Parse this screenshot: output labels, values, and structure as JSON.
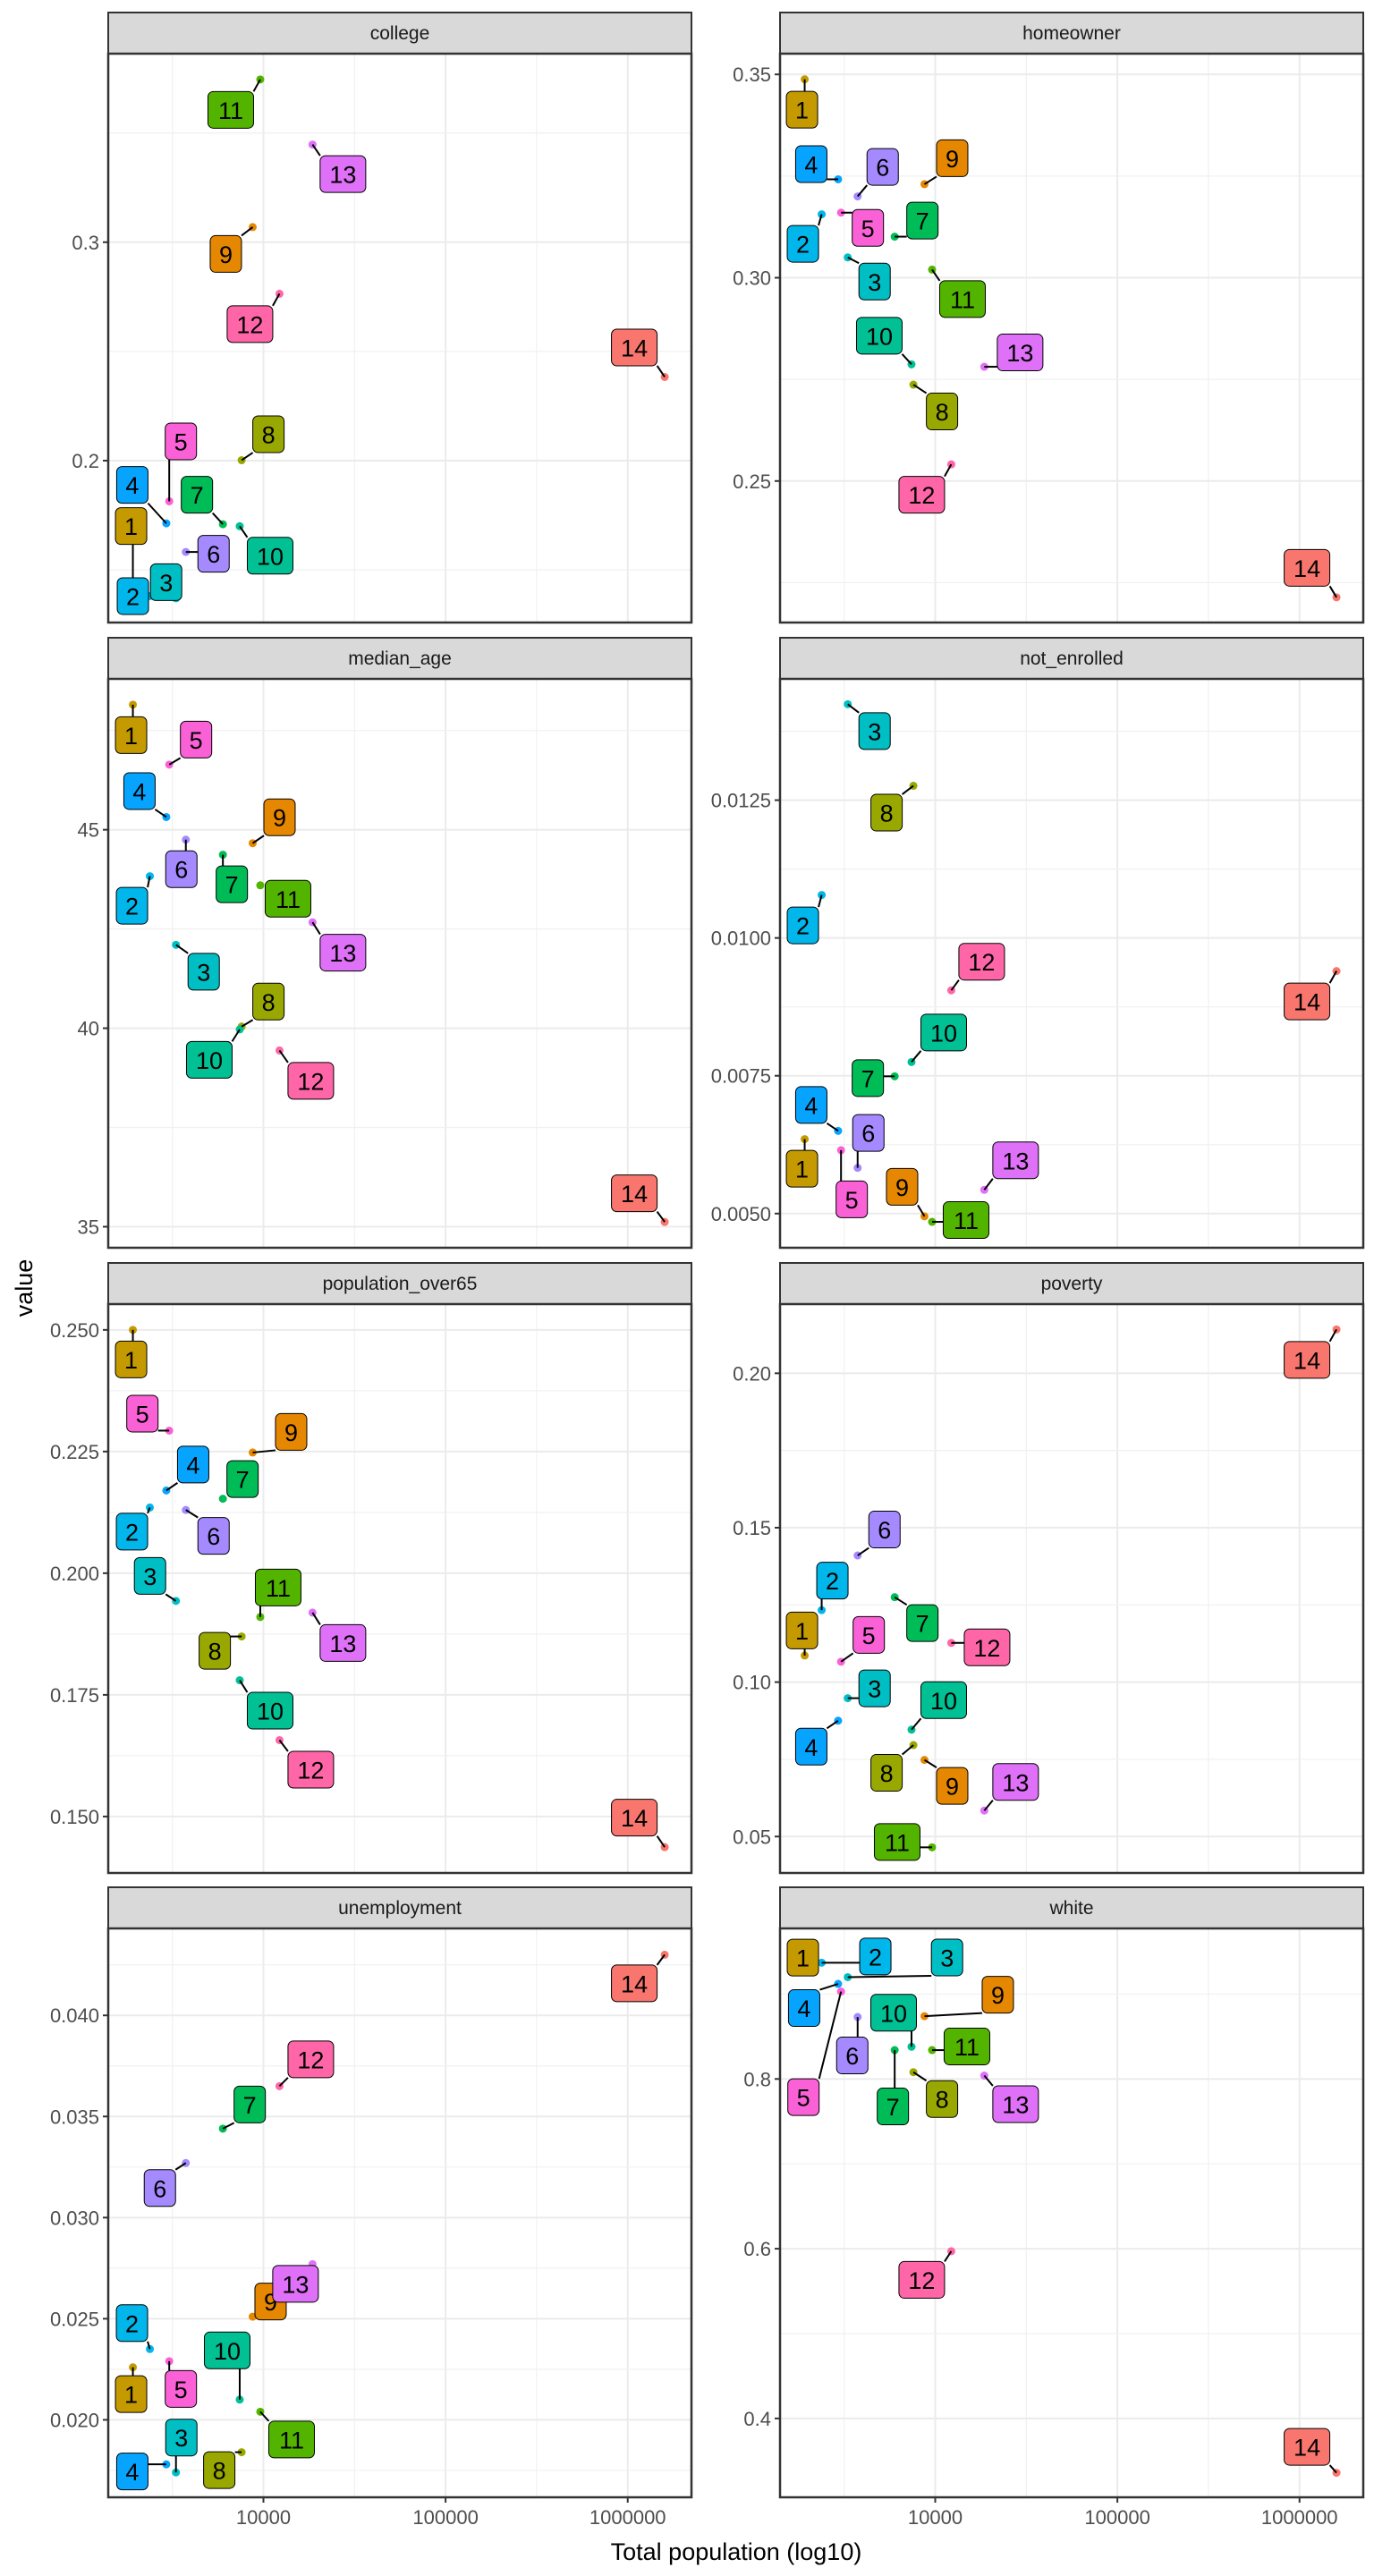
{
  "chart_data": {
    "type": "scatter",
    "faceted": true,
    "facet_layout": "2 columns x 4 rows, free y scales",
    "xlabel": "Total population (log10)",
    "ylabel": "value",
    "x_scale": "log10",
    "x_range": [
      1400,
      2240000
    ],
    "x_ticks": [
      10000,
      100000,
      1000000
    ],
    "x_tick_labels": [
      "10000",
      "100000",
      "1000000"
    ],
    "grid": true,
    "legend": "none",
    "point_ids": [
      "1",
      "2",
      "3",
      "4",
      "5",
      "6",
      "7",
      "8",
      "9",
      "10",
      "11",
      "12",
      "13",
      "14"
    ],
    "colors": {
      "1": "#C49A00",
      "2": "#00B6EB",
      "3": "#00BFC4",
      "4": "#06A4FF",
      "5": "#FB61D7",
      "6": "#A58AFF",
      "7": "#00BC56",
      "8": "#99A800",
      "9": "#E58700",
      "10": "#00C094",
      "11": "#53B400",
      "12": "#FF66A8",
      "13": "#DF70F8",
      "14": "#F8766D"
    },
    "x": {
      "1": 1920,
      "2": 2380,
      "3": 3310,
      "4": 2930,
      "5": 3040,
      "6": 3750,
      "7": 5990,
      "8": 7590,
      "9": 8730,
      "10": 7410,
      "11": 9610,
      "12": 12250,
      "13": 18600,
      "14": 1596000
    },
    "facets": [
      {
        "name": "college",
        "ylim": [
          0.1259,
          0.3863
        ],
        "y_ticks": [
          0.2,
          0.3
        ],
        "y_tick_labels": [
          "0.2",
          "0.3"
        ],
        "values": {
          "1": 0.141,
          "2": 0.138,
          "3": 0.137,
          "4": 0.1713,
          "5": 0.1814,
          "6": 0.1582,
          "7": 0.1709,
          "8": 0.2002,
          "9": 0.3069,
          "10": 0.17,
          "11": 0.3745,
          "12": 0.2764,
          "13": 0.3447,
          "14": 0.2383
        }
      },
      {
        "name": "homeowner",
        "ylim": [
          0.2152,
          0.3551
        ],
        "y_ticks": [
          0.25,
          0.3,
          0.35
        ],
        "y_tick_labels": [
          "0.25",
          "0.30",
          "0.35"
        ],
        "values": {
          "1": 0.3488,
          "2": 0.3156,
          "3": 0.305,
          "4": 0.3242,
          "5": 0.316,
          "6": 0.32,
          "7": 0.3101,
          "8": 0.2737,
          "9": 0.323,
          "10": 0.2787,
          "11": 0.302,
          "12": 0.2541,
          "13": 0.2781,
          "14": 0.2214
        }
      },
      {
        "name": "median_age",
        "ylim": [
          34.47,
          48.8
        ],
        "y_ticks": [
          35,
          40,
          45
        ],
        "y_tick_labels": [
          "35",
          "40",
          "45"
        ],
        "values": {
          "1": 48.15,
          "2": 43.83,
          "3": 42.1,
          "4": 45.32,
          "5": 46.64,
          "6": 44.75,
          "7": 44.37,
          "8": 40.04,
          "9": 44.66,
          "10": 39.97,
          "11": 43.6,
          "12": 39.44,
          "13": 42.67,
          "14": 35.12
        }
      },
      {
        "name": "not_enrolled",
        "ylim": [
          0.00438,
          0.0147
        ],
        "y_ticks": [
          0.005,
          0.0075,
          0.01,
          0.0125
        ],
        "y_tick_labels": [
          "0.0050",
          "0.0075",
          "0.0100",
          "0.0125"
        ],
        "values": {
          "1": 0.00635,
          "2": 0.01078,
          "3": 0.01424,
          "4": 0.0065,
          "5": 0.00615,
          "6": 0.00583,
          "7": 0.00749,
          "8": 0.01276,
          "9": 0.00495,
          "10": 0.00775,
          "11": 0.00485,
          "12": 0.00905,
          "13": 0.00543,
          "14": 0.0094
        }
      },
      {
        "name": "population_over65",
        "ylim": [
          0.1384,
          0.2553
        ],
        "y_ticks": [
          0.15,
          0.175,
          0.2,
          0.225,
          0.25
        ],
        "y_tick_labels": [
          "0.150",
          "0.175",
          "0.200",
          "0.225",
          "0.250"
        ],
        "values": {
          "1": 0.25,
          "2": 0.2135,
          "3": 0.1943,
          "4": 0.217,
          "5": 0.2293,
          "6": 0.213,
          "7": 0.2153,
          "8": 0.187,
          "9": 0.2248,
          "10": 0.178,
          "11": 0.191,
          "12": 0.1657,
          "13": 0.1919,
          "14": 0.1437
        }
      },
      {
        "name": "poverty",
        "ylim": [
          0.0382,
          0.2224
        ],
        "y_ticks": [
          0.05,
          0.1,
          0.15,
          0.2
        ],
        "y_tick_labels": [
          "0.05",
          "0.10",
          "0.15",
          "0.20"
        ],
        "values": {
          "1": 0.1086,
          "2": 0.1233,
          "3": 0.0948,
          "4": 0.0875,
          "5": 0.1066,
          "6": 0.141,
          "7": 0.1275,
          "8": 0.0796,
          "9": 0.0748,
          "10": 0.0846,
          "11": 0.0465,
          "12": 0.1127,
          "13": 0.0584,
          "14": 0.2142
        }
      },
      {
        "name": "unemployment",
        "ylim": [
          0.01617,
          0.0443
        ],
        "y_ticks": [
          0.02,
          0.025,
          0.03,
          0.035,
          0.04
        ],
        "y_tick_labels": [
          "0.020",
          "0.025",
          "0.030",
          "0.035",
          "0.040"
        ],
        "values": {
          "1": 0.0226,
          "2": 0.0235,
          "3": 0.0174,
          "4": 0.0178,
          "5": 0.0229,
          "6": 0.0327,
          "7": 0.0344,
          "8": 0.0184,
          "9": 0.0251,
          "10": 0.021,
          "11": 0.0204,
          "12": 0.0365,
          "13": 0.0277,
          "14": 0.043
        }
      },
      {
        "name": "white",
        "ylim": [
          0.3071,
          0.9774
        ],
        "y_ticks": [
          0.4,
          0.6,
          0.8
        ],
        "y_tick_labels": [
          "0.4",
          "0.6",
          "0.8"
        ],
        "values": {
          "1": 0.943,
          "2": 0.937,
          "3": 0.92,
          "4": 0.912,
          "5": 0.903,
          "6": 0.873,
          "7": 0.834,
          "8": 0.808,
          "9": 0.874,
          "10": 0.838,
          "11": 0.834,
          "12": 0.597,
          "13": 0.804,
          "14": 0.336
        }
      }
    ]
  }
}
